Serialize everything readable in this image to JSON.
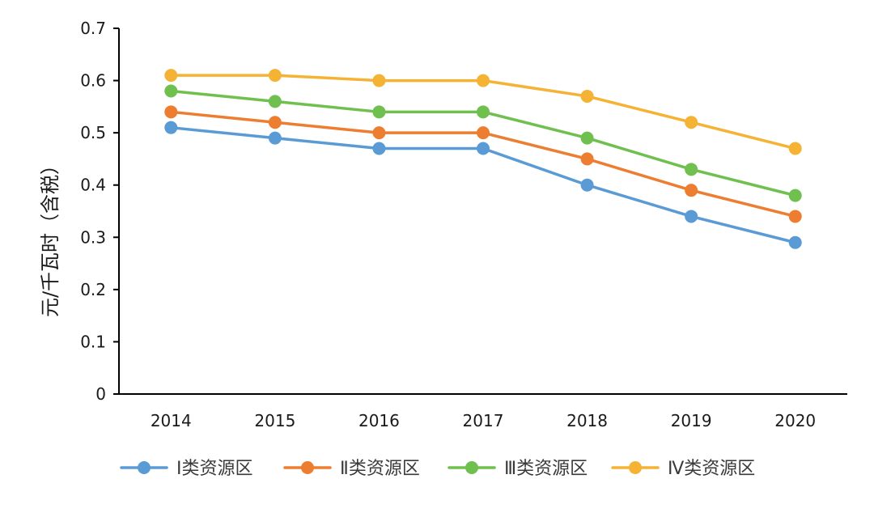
{
  "chart_data": {
    "type": "line",
    "title": "",
    "xlabel": "",
    "ylabel": "元/千瓦时（含税）",
    "categories": [
      "2014",
      "2015",
      "2016",
      "2017",
      "2018",
      "2019",
      "2020"
    ],
    "ylim": [
      0,
      0.7
    ],
    "yticks": [
      "0",
      "0.1",
      "0.2",
      "0.3",
      "0.4",
      "0.5",
      "0.6",
      "0.7"
    ],
    "grid": false,
    "legend_position": "bottom",
    "series": [
      {
        "name": "Ⅰ类资源区",
        "color": "#5b9bd5",
        "values": [
          0.51,
          0.49,
          0.47,
          0.47,
          0.4,
          0.34,
          0.29
        ]
      },
      {
        "name": "Ⅱ类资源区",
        "color": "#ed7d31",
        "values": [
          0.54,
          0.52,
          0.5,
          0.5,
          0.45,
          0.39,
          0.34
        ]
      },
      {
        "name": "Ⅲ类资源区",
        "color": "#70c050",
        "values": [
          0.58,
          0.56,
          0.54,
          0.54,
          0.49,
          0.43,
          0.38
        ]
      },
      {
        "name": "Ⅳ类资源区",
        "color": "#f5b335",
        "values": [
          0.61,
          0.61,
          0.6,
          0.6,
          0.57,
          0.52,
          0.47
        ]
      }
    ]
  }
}
